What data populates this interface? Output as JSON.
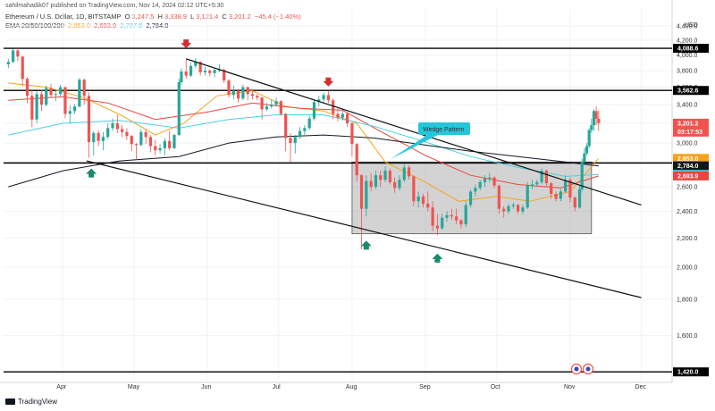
{
  "header": {
    "publisher": "sahilmahadik07 published on TradingView.com, Nov 14, 2024 02:12 UTC+5:30",
    "symbol": "Ethereum / U.S. Dollar, 1D, BITSTAMP",
    "open_label": "O",
    "open": "3,247.5",
    "high_label": "H",
    "high": "3,338.9",
    "low_label": "L",
    "low": "3,121.4",
    "close_label": "C",
    "close": "3,201.2",
    "change": "−45.4 (−1.40%)",
    "ema_label": "EMA 20/50/100/200",
    "ema20": "2,853.0",
    "ema50": "2,693.9",
    "ema100": "2,707.5",
    "ema200": "2,784.0"
  },
  "currency": "USD",
  "annotation": "Wedge Pattern",
  "footer": "TradingView",
  "colors": {
    "up": "#26a69a",
    "down": "#ef5350",
    "ema20": "#f7a21b",
    "ema50": "#e8473c",
    "ema100": "#4dd0e1",
    "ema200": "#131722",
    "box": "#9e9e9e",
    "annotation": "#26c6da",
    "arrow_down": "#d32f2f",
    "arrow_up": "#1b8a6b"
  },
  "chart_data": {
    "type": "candlestick",
    "y_scale": "log",
    "ylim": [
      1380,
      4650
    ],
    "x_months": [
      "Apr",
      "May",
      "Jun",
      "Jul",
      "Aug",
      "Sep",
      "Oct",
      "Nov",
      "Dec"
    ],
    "x_range": [
      "2024-03-07",
      "2024-12-14"
    ],
    "y_ticks": [
      "4,400.0",
      "4,200.0",
      "4,000.0",
      "3,800.0",
      "3,600.0",
      "3,400.0",
      "3,200.0",
      "3,000.0",
      "2,800.0",
      "2,600.0",
      "2,400.0",
      "2,200.0",
      "2,000.0",
      "1,800.0",
      "1,600.0"
    ],
    "horizontal_levels": [
      {
        "price": 4088.6,
        "label": "4,088.6"
      },
      {
        "price": 3562.6,
        "label": "3,562.6"
      },
      {
        "price": 2811.0,
        "label": "2,811.0"
      },
      {
        "price": 1420.0,
        "label": "1,420.0"
      }
    ],
    "right_badges": [
      {
        "price": 3201.2,
        "label": "3,201.2",
        "sub": "03:17:53",
        "color": "#ef5350"
      },
      {
        "price": 2853.0,
        "label": "2,853.0",
        "color": "#f7a21b"
      },
      {
        "price": 2784.0,
        "label": "2,784.0",
        "color": "#131722"
      },
      {
        "price": 2707.5,
        "label": "2,707.5",
        "color": "#4dd0e1"
      },
      {
        "price": 2693.9,
        "label": "2,693.9",
        "color": "#e8473c"
      }
    ],
    "trendlines": [
      {
        "name": "wedge-upper",
        "from": [
          "2024-05-23",
          3950
        ],
        "to": [
          "2024-12-01",
          2450
        ]
      },
      {
        "name": "wedge-lower",
        "from": [
          "2024-04-11",
          2830
        ],
        "to": [
          "2024-12-01",
          1810
        ]
      }
    ],
    "range_box": {
      "from": "2024-08-01",
      "to": "2024-11-10",
      "top": 2820,
      "bottom": 2230
    },
    "markers": [
      {
        "type": "down",
        "date": "2024-05-23",
        "price": 4100
      },
      {
        "type": "down",
        "date": "2024-07-22",
        "price": 3620
      },
      {
        "type": "up",
        "date": "2024-04-13",
        "price": 2760
      },
      {
        "type": "up",
        "date": "2024-08-07",
        "price": 2180
      },
      {
        "type": "up",
        "date": "2024-09-06",
        "price": 2090
      }
    ],
    "candles": [
      [
        "2024-03-09",
        3880,
        3950,
        3830,
        3910
      ],
      [
        "2024-03-11",
        3910,
        4080,
        3900,
        4060
      ],
      [
        "2024-03-13",
        4060,
        4090,
        3920,
        3980
      ],
      [
        "2024-03-15",
        3980,
        3990,
        3610,
        3700
      ],
      [
        "2024-03-17",
        3700,
        3720,
        3420,
        3500
      ],
      [
        "2024-03-19",
        3500,
        3560,
        3160,
        3240
      ],
      [
        "2024-03-21",
        3240,
        3560,
        3200,
        3520
      ],
      [
        "2024-03-23",
        3520,
        3570,
        3330,
        3400
      ],
      [
        "2024-03-25",
        3400,
        3620,
        3380,
        3590
      ],
      [
        "2024-03-27",
        3590,
        3640,
        3480,
        3510
      ],
      [
        "2024-03-29",
        3510,
        3580,
        3440,
        3520
      ],
      [
        "2024-03-31",
        3520,
        3630,
        3490,
        3600
      ],
      [
        "2024-04-02",
        3600,
        3610,
        3250,
        3300
      ],
      [
        "2024-04-04",
        3300,
        3390,
        3200,
        3330
      ],
      [
        "2024-04-06",
        3330,
        3410,
        3300,
        3380
      ],
      [
        "2024-04-08",
        3380,
        3710,
        3370,
        3690
      ],
      [
        "2024-04-10",
        3690,
        3700,
        3400,
        3500
      ],
      [
        "2024-04-12",
        3500,
        3540,
        2860,
        3010
      ],
      [
        "2024-04-14",
        3010,
        3120,
        2880,
        3100
      ],
      [
        "2024-04-16",
        3100,
        3130,
        2970,
        3020
      ],
      [
        "2024-04-18",
        3020,
        3110,
        2930,
        3060
      ],
      [
        "2024-04-20",
        3060,
        3200,
        3040,
        3150
      ],
      [
        "2024-04-22",
        3150,
        3250,
        3120,
        3200
      ],
      [
        "2024-04-24",
        3200,
        3290,
        3100,
        3140
      ],
      [
        "2024-04-26",
        3140,
        3180,
        3060,
        3110
      ],
      [
        "2024-04-28",
        3110,
        3150,
        3030,
        3070
      ],
      [
        "2024-04-30",
        3070,
        3080,
        2920,
        2990
      ],
      [
        "2024-05-02",
        2990,
        3000,
        2840,
        2980
      ],
      [
        "2024-05-04",
        2980,
        3140,
        2970,
        3110
      ],
      [
        "2024-05-06",
        3110,
        3140,
        2990,
        3060
      ],
      [
        "2024-05-08",
        3060,
        3080,
        2910,
        2970
      ],
      [
        "2024-05-10",
        2970,
        3030,
        2880,
        2930
      ],
      [
        "2024-05-12",
        2930,
        2990,
        2900,
        2950
      ],
      [
        "2024-05-14",
        2950,
        3050,
        2880,
        3020
      ],
      [
        "2024-05-16",
        3020,
        3120,
        2930,
        2950
      ],
      [
        "2024-05-18",
        2950,
        3090,
        2940,
        3080
      ],
      [
        "2024-05-20",
        3080,
        3700,
        3070,
        3660
      ],
      [
        "2024-05-21",
        3660,
        3830,
        3630,
        3790
      ],
      [
        "2024-05-23",
        3790,
        3940,
        3700,
        3740
      ],
      [
        "2024-05-25",
        3740,
        3900,
        3720,
        3860
      ],
      [
        "2024-05-27",
        3860,
        3960,
        3830,
        3910
      ],
      [
        "2024-05-29",
        3910,
        3920,
        3740,
        3780
      ],
      [
        "2024-05-31",
        3780,
        3850,
        3740,
        3800
      ],
      [
        "2024-06-02",
        3800,
        3820,
        3730,
        3770
      ],
      [
        "2024-06-04",
        3770,
        3830,
        3720,
        3810
      ],
      [
        "2024-06-06",
        3810,
        3880,
        3780,
        3810
      ],
      [
        "2024-06-08",
        3810,
        3830,
        3650,
        3680
      ],
      [
        "2024-06-10",
        3680,
        3700,
        3480,
        3510
      ],
      [
        "2024-06-12",
        3510,
        3620,
        3460,
        3560
      ],
      [
        "2024-06-14",
        3560,
        3580,
        3420,
        3470
      ],
      [
        "2024-06-16",
        3470,
        3630,
        3450,
        3600
      ],
      [
        "2024-06-18",
        3600,
        3610,
        3450,
        3520
      ],
      [
        "2024-06-20",
        3520,
        3580,
        3460,
        3500
      ],
      [
        "2024-06-22",
        3500,
        3520,
        3450,
        3480
      ],
      [
        "2024-06-24",
        3480,
        3490,
        3240,
        3350
      ],
      [
        "2024-06-26",
        3350,
        3420,
        3330,
        3380
      ],
      [
        "2024-06-28",
        3380,
        3460,
        3360,
        3400
      ],
      [
        "2024-06-30",
        3400,
        3480,
        3380,
        3440
      ],
      [
        "2024-07-02",
        3440,
        3450,
        3280,
        3300
      ],
      [
        "2024-07-04",
        3300,
        3310,
        2920,
        3050
      ],
      [
        "2024-07-06",
        3050,
        3100,
        2820,
        3000
      ],
      [
        "2024-07-08",
        3000,
        3080,
        2900,
        3060
      ],
      [
        "2024-07-10",
        3060,
        3160,
        3040,
        3120
      ],
      [
        "2024-07-12",
        3120,
        3180,
        3080,
        3150
      ],
      [
        "2024-07-14",
        3150,
        3280,
        3130,
        3250
      ],
      [
        "2024-07-16",
        3250,
        3460,
        3230,
        3430
      ],
      [
        "2024-07-18",
        3430,
        3500,
        3380,
        3460
      ],
      [
        "2024-07-20",
        3460,
        3540,
        3430,
        3510
      ],
      [
        "2024-07-22",
        3510,
        3560,
        3420,
        3450
      ],
      [
        "2024-07-24",
        3450,
        3470,
        3240,
        3300
      ],
      [
        "2024-07-26",
        3300,
        3360,
        3220,
        3260
      ],
      [
        "2024-07-28",
        3260,
        3340,
        3230,
        3300
      ],
      [
        "2024-07-30",
        3300,
        3310,
        3160,
        3200
      ],
      [
        "2024-08-01",
        3200,
        3210,
        2870,
        2990
      ],
      [
        "2024-08-03",
        2990,
        3000,
        2650,
        2700
      ],
      [
        "2024-08-05",
        2700,
        2710,
        2120,
        2420
      ],
      [
        "2024-08-07",
        2420,
        2700,
        2360,
        2650
      ],
      [
        "2024-08-09",
        2650,
        2720,
        2560,
        2600
      ],
      [
        "2024-08-11",
        2600,
        2740,
        2580,
        2700
      ],
      [
        "2024-08-13",
        2700,
        2740,
        2600,
        2660
      ],
      [
        "2024-08-15",
        2660,
        2780,
        2640,
        2740
      ],
      [
        "2024-08-17",
        2740,
        2760,
        2620,
        2640
      ],
      [
        "2024-08-19",
        2640,
        2680,
        2550,
        2590
      ],
      [
        "2024-08-21",
        2590,
        2700,
        2570,
        2660
      ],
      [
        "2024-08-23",
        2660,
        2800,
        2640,
        2770
      ],
      [
        "2024-08-25",
        2770,
        2790,
        2660,
        2690
      ],
      [
        "2024-08-27",
        2690,
        2700,
        2440,
        2480
      ],
      [
        "2024-08-29",
        2480,
        2560,
        2430,
        2520
      ],
      [
        "2024-08-31",
        2520,
        2540,
        2430,
        2460
      ],
      [
        "2024-09-02",
        2460,
        2560,
        2400,
        2430
      ],
      [
        "2024-09-04",
        2430,
        2480,
        2250,
        2290
      ],
      [
        "2024-09-06",
        2290,
        2380,
        2220,
        2270
      ],
      [
        "2024-09-08",
        2270,
        2380,
        2260,
        2350
      ],
      [
        "2024-09-10",
        2350,
        2400,
        2320,
        2370
      ],
      [
        "2024-09-12",
        2370,
        2420,
        2330,
        2360
      ],
      [
        "2024-09-14",
        2360,
        2420,
        2300,
        2330
      ],
      [
        "2024-09-16",
        2330,
        2340,
        2270,
        2300
      ],
      [
        "2024-09-18",
        2300,
        2480,
        2280,
        2450
      ],
      [
        "2024-09-20",
        2450,
        2580,
        2430,
        2560
      ],
      [
        "2024-09-22",
        2560,
        2620,
        2520,
        2590
      ],
      [
        "2024-09-24",
        2590,
        2660,
        2570,
        2640
      ],
      [
        "2024-09-26",
        2640,
        2700,
        2600,
        2670
      ],
      [
        "2024-09-28",
        2670,
        2720,
        2640,
        2680
      ],
      [
        "2024-09-30",
        2680,
        2690,
        2590,
        2610
      ],
      [
        "2024-10-02",
        2610,
        2620,
        2380,
        2420
      ],
      [
        "2024-10-04",
        2420,
        2440,
        2350,
        2400
      ],
      [
        "2024-10-06",
        2400,
        2460,
        2380,
        2440
      ],
      [
        "2024-10-08",
        2440,
        2470,
        2420,
        2450
      ],
      [
        "2024-10-10",
        2450,
        2460,
        2380,
        2400
      ],
      [
        "2024-10-12",
        2400,
        2450,
        2380,
        2430
      ],
      [
        "2024-10-14",
        2430,
        2640,
        2420,
        2610
      ],
      [
        "2024-10-16",
        2610,
        2660,
        2580,
        2620
      ],
      [
        "2024-10-18",
        2620,
        2660,
        2600,
        2640
      ],
      [
        "2024-10-20",
        2640,
        2760,
        2620,
        2740
      ],
      [
        "2024-10-22",
        2740,
        2750,
        2600,
        2630
      ],
      [
        "2024-10-24",
        2630,
        2640,
        2500,
        2540
      ],
      [
        "2024-10-26",
        2540,
        2560,
        2480,
        2500
      ],
      [
        "2024-10-28",
        2500,
        2580,
        2480,
        2560
      ],
      [
        "2024-10-30",
        2560,
        2700,
        2550,
        2660
      ],
      [
        "2024-11-01",
        2660,
        2680,
        2470,
        2510
      ],
      [
        "2024-11-03",
        2510,
        2520,
        2400,
        2430
      ],
      [
        "2024-11-05",
        2430,
        2610,
        2420,
        2580
      ],
      [
        "2024-11-06",
        2580,
        2850,
        2560,
        2820
      ],
      [
        "2024-11-07",
        2820,
        2950,
        2800,
        2900
      ],
      [
        "2024-11-08",
        2900,
        3000,
        2880,
        2970
      ],
      [
        "2024-11-09",
        2970,
        3150,
        2950,
        3130
      ],
      [
        "2024-11-10",
        3130,
        3250,
        3100,
        3180
      ],
      [
        "2024-11-11",
        3180,
        3350,
        3120,
        3330
      ],
      [
        "2024-11-12",
        3330,
        3380,
        3180,
        3247
      ],
      [
        "2024-11-13",
        3247.5,
        3338.9,
        3121.4,
        3201.2
      ]
    ],
    "ema": {
      "ema20": [
        [
          "2024-03-09",
          3650
        ],
        [
          "2024-03-25",
          3600
        ],
        [
          "2024-04-10",
          3480
        ],
        [
          "2024-04-26",
          3280
        ],
        [
          "2024-05-10",
          3080
        ],
        [
          "2024-05-22",
          3200
        ],
        [
          "2024-06-05",
          3500
        ],
        [
          "2024-06-20",
          3560
        ],
        [
          "2024-07-04",
          3380
        ],
        [
          "2024-07-20",
          3330
        ],
        [
          "2024-08-03",
          3200
        ],
        [
          "2024-08-15",
          2820
        ],
        [
          "2024-09-01",
          2640
        ],
        [
          "2024-09-15",
          2480
        ],
        [
          "2024-10-01",
          2520
        ],
        [
          "2024-10-15",
          2480
        ],
        [
          "2024-11-01",
          2560
        ],
        [
          "2024-11-13",
          2853.0
        ]
      ],
      "ema50": [
        [
          "2024-03-09",
          3450
        ],
        [
          "2024-04-01",
          3490
        ],
        [
          "2024-04-20",
          3420
        ],
        [
          "2024-05-10",
          3240
        ],
        [
          "2024-06-01",
          3320
        ],
        [
          "2024-06-20",
          3420
        ],
        [
          "2024-07-10",
          3360
        ],
        [
          "2024-07-28",
          3340
        ],
        [
          "2024-08-12",
          3130
        ],
        [
          "2024-09-01",
          2880
        ],
        [
          "2024-09-20",
          2700
        ],
        [
          "2024-10-10",
          2620
        ],
        [
          "2024-10-28",
          2590
        ],
        [
          "2024-11-13",
          2693.9
        ]
      ],
      "ema100": [
        [
          "2024-03-09",
          3080
        ],
        [
          "2024-04-01",
          3200
        ],
        [
          "2024-04-25",
          3230
        ],
        [
          "2024-05-20",
          3150
        ],
        [
          "2024-06-10",
          3240
        ],
        [
          "2024-06-30",
          3290
        ],
        [
          "2024-07-20",
          3290
        ],
        [
          "2024-08-10",
          3170
        ],
        [
          "2024-09-01",
          3010
        ],
        [
          "2024-09-20",
          2870
        ],
        [
          "2024-10-10",
          2770
        ],
        [
          "2024-10-30",
          2690
        ],
        [
          "2024-11-13",
          2707.5
        ]
      ],
      "ema200": [
        [
          "2024-03-09",
          2600
        ],
        [
          "2024-04-01",
          2740
        ],
        [
          "2024-04-25",
          2830
        ],
        [
          "2024-05-20",
          2870
        ],
        [
          "2024-06-10",
          3000
        ],
        [
          "2024-06-30",
          3060
        ],
        [
          "2024-07-20",
          3080
        ],
        [
          "2024-08-10",
          3050
        ],
        [
          "2024-09-01",
          2980
        ],
        [
          "2024-09-20",
          2920
        ],
        [
          "2024-10-10",
          2870
        ],
        [
          "2024-10-30",
          2820
        ],
        [
          "2024-11-13",
          2784.0
        ]
      ]
    }
  }
}
